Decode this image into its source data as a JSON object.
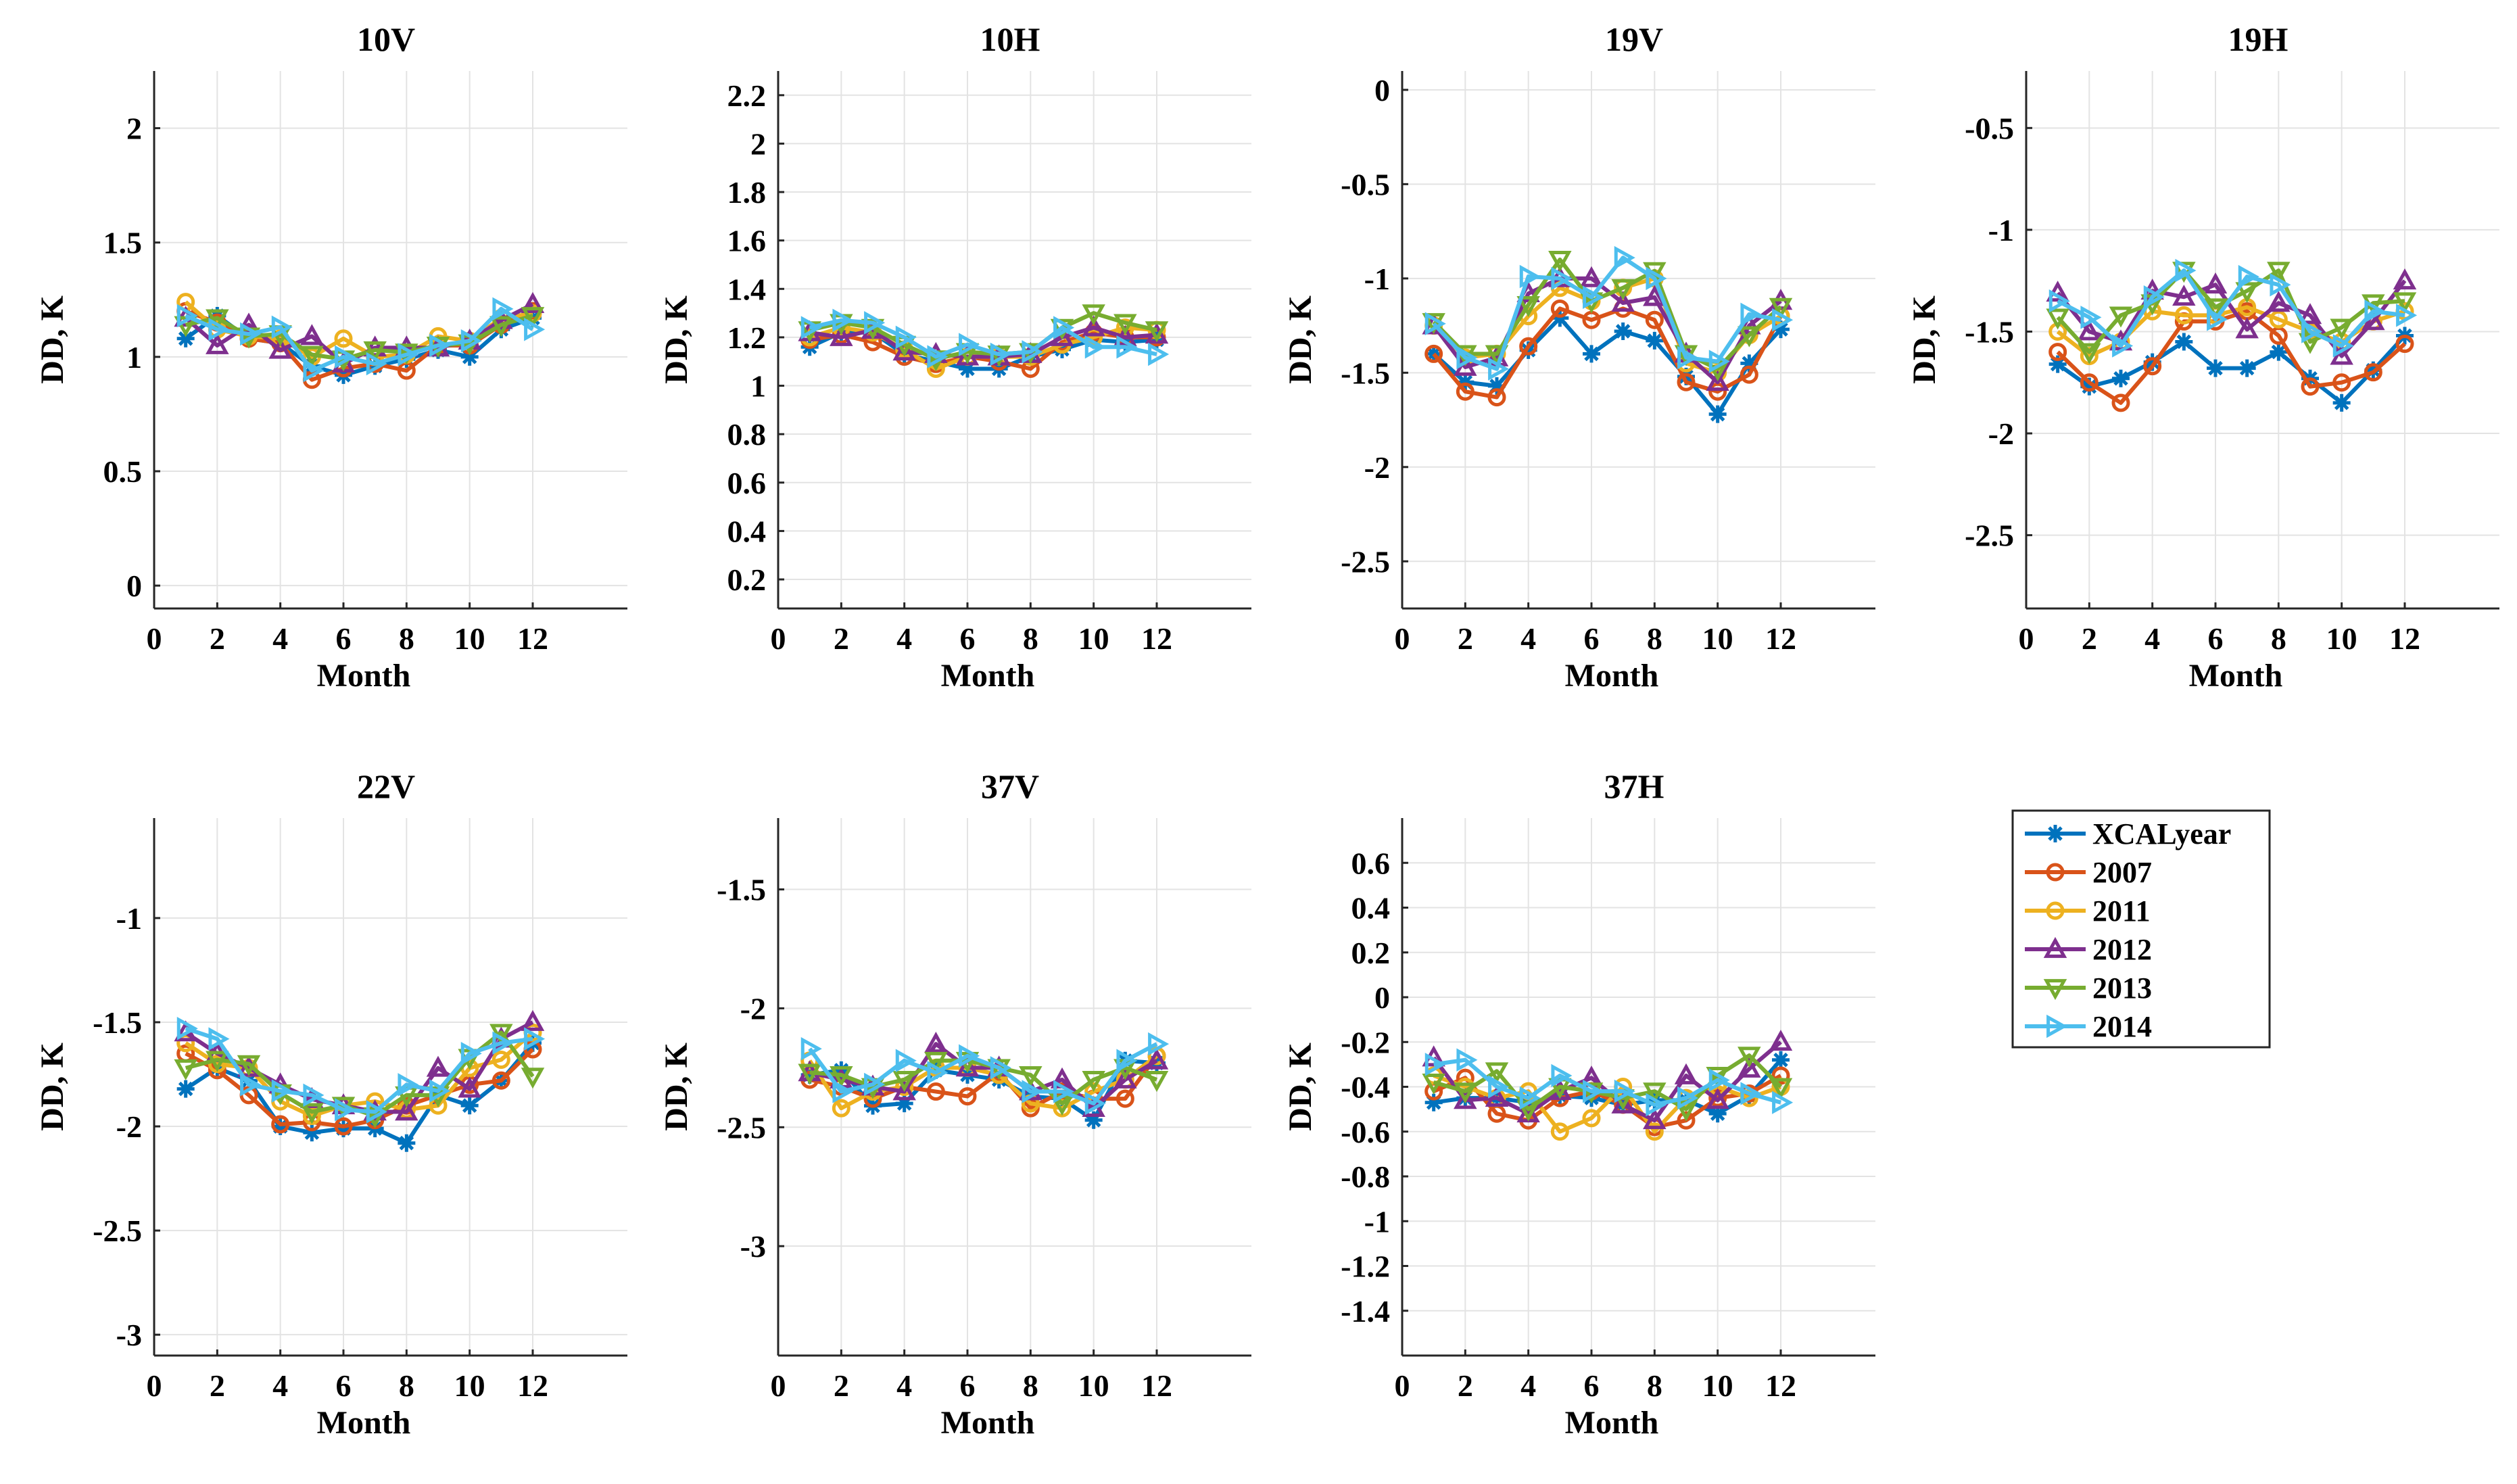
{
  "series_styles": [
    {
      "color": "#0072BD",
      "marker": "star"
    },
    {
      "color": "#D95319",
      "marker": "circle"
    },
    {
      "color": "#EDB120",
      "marker": "circle"
    },
    {
      "color": "#7E2F8E",
      "marker": "triangle-up"
    },
    {
      "color": "#77AC30",
      "marker": "triangle-down"
    },
    {
      "color": "#4DBEEE",
      "marker": "triangle-right"
    }
  ],
  "legend": {
    "location": "right of lower row, 4th column",
    "entries": [
      "XCALyear",
      "2007",
      "2011",
      "2012",
      "2013",
      "2014"
    ]
  },
  "chart_data": [
    {
      "type": "line",
      "title": "10V",
      "xlabel": "Month",
      "ylabel": "DD, K",
      "xlim": [
        0,
        15
      ],
      "ylim": [
        -0.1,
        2.25
      ],
      "xticks": [
        0,
        2,
        4,
        6,
        8,
        10,
        12
      ],
      "yticks": [
        0,
        0.5,
        1,
        1.5,
        2
      ],
      "yticklabels": [
        "0",
        "0.5",
        "1",
        "1.5",
        "2"
      ],
      "grid": true,
      "x": [
        1,
        2,
        3,
        4,
        5,
        6,
        7,
        8,
        9,
        10,
        11,
        12
      ],
      "series": [
        {
          "name": "XCALyear",
          "values": [
            1.08,
            1.18,
            1.08,
            1.06,
            0.96,
            0.92,
            0.96,
            0.99,
            1.03,
            1.0,
            1.12,
            1.17
          ]
        },
        {
          "name": "2007",
          "values": [
            1.2,
            1.15,
            1.08,
            1.06,
            0.9,
            0.95,
            0.97,
            0.94,
            1.05,
            1.05,
            1.14,
            1.2
          ]
        },
        {
          "name": "2011",
          "values": [
            1.24,
            1.12,
            1.09,
            1.08,
            1.0,
            1.08,
            1.0,
            1.01,
            1.09,
            1.07,
            1.17,
            1.19
          ]
        },
        {
          "name": "2012",
          "values": [
            1.17,
            1.05,
            1.14,
            1.03,
            1.09,
            0.97,
            1.04,
            1.04,
            1.04,
            1.07,
            1.16,
            1.23
          ]
        },
        {
          "name": "2013",
          "values": [
            1.14,
            1.17,
            1.09,
            1.1,
            1.01,
            0.99,
            1.03,
            1.02,
            1.05,
            1.06,
            1.14,
            1.18
          ]
        },
        {
          "name": "2014",
          "values": [
            1.18,
            1.12,
            1.1,
            1.13,
            0.94,
            1.0,
            0.97,
            1.01,
            1.05,
            1.07,
            1.21,
            1.12
          ]
        }
      ]
    },
    {
      "type": "line",
      "title": "10H",
      "xlabel": "Month",
      "ylabel": "DD, K",
      "xlim": [
        0,
        15
      ],
      "ylim": [
        0.08,
        2.3
      ],
      "xticks": [
        0,
        2,
        4,
        6,
        8,
        10,
        12
      ],
      "yticks": [
        0.2,
        0.4,
        0.6,
        0.8,
        1,
        1.2,
        1.4,
        1.6,
        1.8,
        2,
        2.2
      ],
      "yticklabels": [
        "0.2",
        "0.4",
        "0.6",
        "0.8",
        "1",
        "1.2",
        "1.4",
        "1.6",
        "1.8",
        "2",
        "2.2"
      ],
      "grid": true,
      "x": [
        1,
        2,
        3,
        4,
        5,
        6,
        7,
        8,
        9,
        10,
        11,
        12
      ],
      "series": [
        {
          "name": "XCALyear",
          "values": [
            1.16,
            1.22,
            1.22,
            1.13,
            1.1,
            1.07,
            1.07,
            1.12,
            1.15,
            1.19,
            1.18,
            1.19
          ]
        },
        {
          "name": "2007",
          "values": [
            1.19,
            1.21,
            1.18,
            1.12,
            1.09,
            1.12,
            1.1,
            1.07,
            1.18,
            1.22,
            1.2,
            1.2
          ]
        },
        {
          "name": "2011",
          "values": [
            1.2,
            1.24,
            1.22,
            1.15,
            1.07,
            1.12,
            1.12,
            1.12,
            1.17,
            1.2,
            1.24,
            1.23
          ]
        },
        {
          "name": "2012",
          "values": [
            1.22,
            1.2,
            1.23,
            1.14,
            1.13,
            1.12,
            1.12,
            1.13,
            1.2,
            1.24,
            1.2,
            1.21
          ]
        },
        {
          "name": "2013",
          "values": [
            1.23,
            1.26,
            1.24,
            1.17,
            1.11,
            1.14,
            1.13,
            1.14,
            1.24,
            1.3,
            1.26,
            1.23
          ]
        },
        {
          "name": "2014",
          "values": [
            1.24,
            1.27,
            1.26,
            1.2,
            1.12,
            1.17,
            1.13,
            1.14,
            1.24,
            1.16,
            1.16,
            1.13
          ]
        }
      ]
    },
    {
      "type": "line",
      "title": "19V",
      "xlabel": "Month",
      "ylabel": "DD, K",
      "xlim": [
        0,
        15
      ],
      "ylim": [
        -2.75,
        0.1
      ],
      "xticks": [
        0,
        2,
        4,
        6,
        8,
        10,
        12
      ],
      "yticks": [
        -2.5,
        -2,
        -1.5,
        -1,
        -0.5,
        0
      ],
      "yticklabels": [
        "-2.5",
        "-2",
        "-1.5",
        "-1",
        "-0.5",
        "0"
      ],
      "grid": true,
      "x": [
        1,
        2,
        3,
        4,
        5,
        6,
        7,
        8,
        9,
        10,
        11,
        12
      ],
      "series": [
        {
          "name": "XCALyear",
          "values": [
            -1.4,
            -1.55,
            -1.57,
            -1.38,
            -1.21,
            -1.4,
            -1.28,
            -1.33,
            -1.52,
            -1.72,
            -1.45,
            -1.27
          ]
        },
        {
          "name": "2007",
          "values": [
            -1.4,
            -1.6,
            -1.63,
            -1.36,
            -1.16,
            -1.22,
            -1.16,
            -1.22,
            -1.55,
            -1.6,
            -1.51,
            -1.2
          ]
        },
        {
          "name": "2011",
          "values": [
            -1.25,
            -1.42,
            -1.4,
            -1.2,
            -1.05,
            -1.12,
            -1.05,
            -1.0,
            -1.45,
            -1.5,
            -1.3,
            -1.2
          ]
        },
        {
          "name": "2012",
          "values": [
            -1.25,
            -1.47,
            -1.42,
            -1.08,
            -1.0,
            -1.0,
            -1.13,
            -1.1,
            -1.4,
            -1.55,
            -1.25,
            -1.12
          ]
        },
        {
          "name": "2013",
          "values": [
            -1.23,
            -1.4,
            -1.4,
            -1.14,
            -0.9,
            -1.12,
            -1.05,
            -0.96,
            -1.4,
            -1.48,
            -1.3,
            -1.15
          ]
        },
        {
          "name": "2014",
          "values": [
            -1.24,
            -1.42,
            -1.48,
            -0.99,
            -1.0,
            -1.1,
            -0.89,
            -1.0,
            -1.42,
            -1.44,
            -1.19,
            -1.22
          ]
        }
      ]
    },
    {
      "type": "line",
      "title": "19H",
      "xlabel": "Month",
      "ylabel": "DD, K",
      "xlim": [
        0,
        15
      ],
      "ylim": [
        -2.86,
        -0.22
      ],
      "xticks": [
        0,
        2,
        4,
        6,
        8,
        10,
        12
      ],
      "yticks": [
        -2.5,
        -2,
        -1.5,
        -1,
        -0.5
      ],
      "yticklabels": [
        "-2.5",
        "-2",
        "-1.5",
        "-1",
        "-0.5"
      ],
      "grid": true,
      "x": [
        1,
        2,
        3,
        4,
        5,
        6,
        7,
        8,
        9,
        10,
        11,
        12
      ],
      "series": [
        {
          "name": "XCALyear",
          "values": [
            -1.66,
            -1.77,
            -1.73,
            -1.65,
            -1.55,
            -1.68,
            -1.68,
            -1.6,
            -1.73,
            -1.85,
            -1.69,
            -1.52
          ]
        },
        {
          "name": "2007",
          "values": [
            -1.6,
            -1.75,
            -1.85,
            -1.67,
            -1.45,
            -1.45,
            -1.4,
            -1.52,
            -1.77,
            -1.75,
            -1.7,
            -1.56
          ]
        },
        {
          "name": "2011",
          "values": [
            -1.5,
            -1.62,
            -1.55,
            -1.4,
            -1.42,
            -1.42,
            -1.38,
            -1.44,
            -1.5,
            -1.55,
            -1.45,
            -1.4
          ]
        },
        {
          "name": "2012",
          "values": [
            -1.31,
            -1.5,
            -1.55,
            -1.3,
            -1.33,
            -1.27,
            -1.49,
            -1.36,
            -1.42,
            -1.62,
            -1.45,
            -1.25
          ]
        },
        {
          "name": "2013",
          "values": [
            -1.43,
            -1.6,
            -1.42,
            -1.36,
            -1.2,
            -1.38,
            -1.3,
            -1.2,
            -1.55,
            -1.48,
            -1.36,
            -1.35
          ]
        },
        {
          "name": "2014",
          "values": [
            -1.35,
            -1.43,
            -1.57,
            -1.33,
            -1.2,
            -1.44,
            -1.23,
            -1.27,
            -1.5,
            -1.57,
            -1.4,
            -1.42
          ]
        }
      ]
    },
    {
      "type": "line",
      "title": "22V",
      "xlabel": "Month",
      "ylabel": "DD, K",
      "xlim": [
        0,
        15
      ],
      "ylim": [
        -3.1,
        -0.52
      ],
      "xticks": [
        0,
        2,
        4,
        6,
        8,
        10,
        12
      ],
      "yticks": [
        -3,
        -2.5,
        -2,
        -1.5,
        -1
      ],
      "yticklabels": [
        "-3",
        "-2.5",
        "-2",
        "-1.5",
        "-1"
      ],
      "grid": true,
      "x": [
        1,
        2,
        3,
        4,
        5,
        6,
        7,
        8,
        9,
        10,
        11,
        12
      ],
      "series": [
        {
          "name": "XCALyear",
          "values": [
            -1.82,
            -1.72,
            -1.78,
            -2.0,
            -2.03,
            -2.01,
            -2.01,
            -2.08,
            -1.85,
            -1.9,
            -1.78,
            -1.6
          ]
        },
        {
          "name": "2007",
          "values": [
            -1.65,
            -1.73,
            -1.85,
            -1.99,
            -1.98,
            -2.0,
            -1.97,
            -1.9,
            -1.85,
            -1.8,
            -1.78,
            -1.63
          ]
        },
        {
          "name": "2011",
          "values": [
            -1.6,
            -1.7,
            -1.72,
            -1.88,
            -1.95,
            -1.9,
            -1.88,
            -1.92,
            -1.9,
            -1.72,
            -1.68,
            -1.55
          ]
        },
        {
          "name": "2012",
          "values": [
            -1.55,
            -1.65,
            -1.72,
            -1.8,
            -1.87,
            -1.9,
            -1.93,
            -1.93,
            -1.72,
            -1.82,
            -1.58,
            -1.5
          ]
        },
        {
          "name": "2013",
          "values": [
            -1.72,
            -1.68,
            -1.7,
            -1.84,
            -1.93,
            -1.9,
            -1.95,
            -1.85,
            -1.85,
            -1.67,
            -1.55,
            -1.76
          ]
        },
        {
          "name": "2014",
          "values": [
            -1.53,
            -1.58,
            -1.8,
            -1.83,
            -1.85,
            -1.92,
            -1.93,
            -1.8,
            -1.83,
            -1.65,
            -1.6,
            -1.58
          ]
        }
      ]
    },
    {
      "type": "line",
      "title": "37V",
      "xlabel": "Month",
      "ylabel": "DD, K",
      "xlim": [
        0,
        15
      ],
      "ylim": [
        -3.46,
        -1.2
      ],
      "xticks": [
        0,
        2,
        4,
        6,
        8,
        10,
        12
      ],
      "yticks": [
        -3,
        -2.5,
        -2,
        -1.5
      ],
      "yticklabels": [
        "-3",
        "-2.5",
        "-2",
        "-1.5"
      ],
      "grid": true,
      "x": [
        1,
        2,
        3,
        4,
        5,
        6,
        7,
        8,
        9,
        10,
        11,
        12
      ],
      "series": [
        {
          "name": "XCALyear",
          "values": [
            -2.28,
            -2.26,
            -2.41,
            -2.4,
            -2.26,
            -2.28,
            -2.3,
            -2.37,
            -2.38,
            -2.47,
            -2.22,
            -2.23
          ]
        },
        {
          "name": "2007",
          "values": [
            -2.3,
            -2.33,
            -2.38,
            -2.33,
            -2.35,
            -2.37,
            -2.27,
            -2.42,
            -2.35,
            -2.38,
            -2.38,
            -2.2
          ]
        },
        {
          "name": "2011",
          "values": [
            -2.22,
            -2.42,
            -2.35,
            -2.33,
            -2.25,
            -2.25,
            -2.28,
            -2.4,
            -2.42,
            -2.35,
            -2.3,
            -2.2
          ]
        },
        {
          "name": "2012",
          "values": [
            -2.27,
            -2.3,
            -2.33,
            -2.35,
            -2.15,
            -2.25,
            -2.25,
            -2.35,
            -2.3,
            -2.42,
            -2.3,
            -2.22
          ]
        },
        {
          "name": "2013",
          "values": [
            -2.27,
            -2.28,
            -2.33,
            -2.3,
            -2.22,
            -2.22,
            -2.25,
            -2.28,
            -2.4,
            -2.3,
            -2.25,
            -2.3
          ]
        },
        {
          "name": "2014",
          "values": [
            -2.17,
            -2.35,
            -2.32,
            -2.22,
            -2.27,
            -2.2,
            -2.25,
            -2.35,
            -2.35,
            -2.4,
            -2.22,
            -2.15
          ]
        }
      ]
    },
    {
      "type": "line",
      "title": "37H",
      "xlabel": "Month",
      "ylabel": "DD, K",
      "xlim": [
        0,
        15
      ],
      "ylim": [
        -1.6,
        0.8
      ],
      "xticks": [
        0,
        2,
        4,
        6,
        8,
        10,
        12
      ],
      "yticks": [
        -1.4,
        -1.2,
        -1,
        -0.8,
        -0.6,
        -0.4,
        -0.2,
        0,
        0.2,
        0.4,
        0.6
      ],
      "yticklabels": [
        "-1.4",
        "-1.2",
        "-1",
        "-0.8",
        "-0.6",
        "-0.4",
        "-0.2",
        "0",
        "0.2",
        "0.4",
        "0.6"
      ],
      "grid": true,
      "x": [
        1,
        2,
        3,
        4,
        5,
        6,
        7,
        8,
        9,
        10,
        11,
        12
      ],
      "series": [
        {
          "name": "XCALyear",
          "values": [
            -0.47,
            -0.45,
            -0.45,
            -0.47,
            -0.44,
            -0.45,
            -0.48,
            -0.46,
            -0.46,
            -0.52,
            -0.44,
            -0.28
          ]
        },
        {
          "name": "2007",
          "values": [
            -0.42,
            -0.36,
            -0.52,
            -0.55,
            -0.45,
            -0.42,
            -0.48,
            -0.58,
            -0.55,
            -0.45,
            -0.43,
            -0.35
          ]
        },
        {
          "name": "2011",
          "values": [
            -0.35,
            -0.4,
            -0.45,
            -0.42,
            -0.6,
            -0.54,
            -0.4,
            -0.6,
            -0.45,
            -0.4,
            -0.45,
            -0.4
          ]
        },
        {
          "name": "2012",
          "values": [
            -0.27,
            -0.46,
            -0.45,
            -0.52,
            -0.42,
            -0.36,
            -0.48,
            -0.55,
            -0.35,
            -0.46,
            -0.32,
            -0.2
          ]
        },
        {
          "name": "2013",
          "values": [
            -0.38,
            -0.42,
            -0.33,
            -0.5,
            -0.4,
            -0.42,
            -0.45,
            -0.42,
            -0.5,
            -0.35,
            -0.26,
            -0.4
          ]
        },
        {
          "name": "2014",
          "values": [
            -0.3,
            -0.28,
            -0.4,
            -0.45,
            -0.35,
            -0.42,
            -0.42,
            -0.48,
            -0.45,
            -0.37,
            -0.43,
            -0.47
          ]
        }
      ]
    }
  ]
}
